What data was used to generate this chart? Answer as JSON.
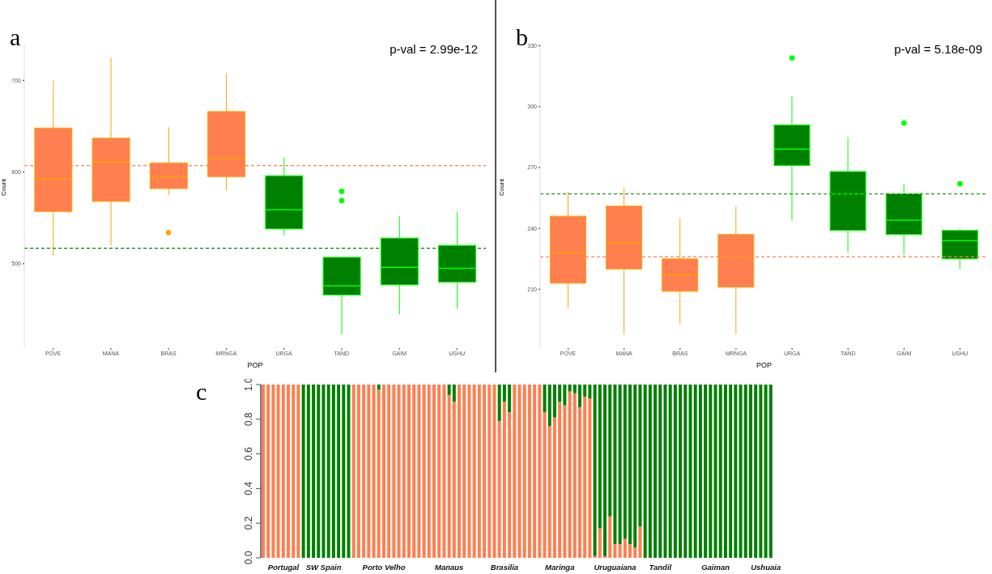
{
  "chart_data": [
    {
      "type": "box",
      "title": "a",
      "xlabel": "POP",
      "ylabel": "Count",
      "annotations": [
        "p-val = 2.99e-12"
      ],
      "categories": [
        "POVE",
        "MANA",
        "BRAS",
        "MRNGA",
        "URGA",
        "TAND",
        "GAIM",
        "USHU"
      ],
      "colors": [
        "#ff7f50",
        "#ff7f50",
        "#ff7f50",
        "#ff7f50",
        "#008000",
        "#008000",
        "#008000",
        "#008000"
      ],
      "boxes": [
        {
          "low": 509,
          "q1": 557,
          "median": 592,
          "q3": 648,
          "high": 700
        },
        {
          "low": 520,
          "q1": 568,
          "median": 611,
          "q3": 637,
          "high": 725
        },
        {
          "low": 575,
          "q1": 582,
          "median": 594,
          "q3": 610,
          "high": 649,
          "outliers": [
            534
          ]
        },
        {
          "low": 580,
          "q1": 595,
          "median": 615,
          "q3": 666,
          "high": 708
        },
        {
          "low": 531,
          "q1": 538,
          "median": 559,
          "q3": 596,
          "high": 616
        },
        {
          "low": 423,
          "q1": 466,
          "median": 476,
          "q3": 507,
          "high": 507,
          "outliers": [
            579,
            569
          ]
        },
        {
          "low": 445,
          "q1": 477,
          "median": 496,
          "q3": 528,
          "high": 552
        },
        {
          "low": 451,
          "q1": 480,
          "median": 495,
          "q3": 520,
          "high": 556
        }
      ],
      "ylim": [
        408,
        740
      ],
      "yticks": [
        500,
        600,
        700
      ],
      "grid": false,
      "legend": false,
      "ref_lines": [
        {
          "axis": "y",
          "value": 607,
          "color": "#ff7f50",
          "line_style": "dashed"
        },
        {
          "axis": "y",
          "value": 517,
          "color": "#008000",
          "line_style": "dashed"
        }
      ]
    },
    {
      "type": "box",
      "title": "b",
      "xlabel": "POP",
      "ylabel": "Count",
      "annotations": [
        "p-val = 5.18e-09"
      ],
      "categories": [
        "POVE",
        "MANA",
        "BRAS",
        "MRNGA",
        "URGA",
        "TAND",
        "GAIM",
        "USHU"
      ],
      "colors": [
        "#ff7f50",
        "#ff7f50",
        "#ff7f50",
        "#ff7f50",
        "#008000",
        "#008000",
        "#008000",
        "#008000"
      ],
      "boxes": [
        {
          "low": 201,
          "q1": 213,
          "median": 228,
          "q3": 246,
          "high": 258
        },
        {
          "low": 188,
          "q1": 220,
          "median": 233,
          "q3": 251,
          "high": 260
        },
        {
          "low": 193,
          "q1": 209,
          "median": 217,
          "q3": 225,
          "high": 245
        },
        {
          "low": 188,
          "q1": 211,
          "median": 226,
          "q3": 237,
          "high": 251
        },
        {
          "low": 244,
          "q1": 271,
          "median": 279,
          "q3": 291,
          "high": 305,
          "outliers": [
            324
          ]
        },
        {
          "low": 228,
          "q1": 239,
          "median": 257,
          "q3": 268,
          "high": 285
        },
        {
          "low": 227,
          "q1": 237,
          "median": 244,
          "q3": 257,
          "high": 262,
          "outliers": [
            292
          ]
        },
        {
          "low": 220,
          "q1": 225,
          "median": 234,
          "q3": 239,
          "high": 240,
          "outliers": [
            262
          ]
        }
      ],
      "ylim": [
        181,
        331
      ],
      "yticks": [
        210,
        240,
        270,
        300,
        330
      ],
      "grid": false,
      "legend": false,
      "ref_lines": [
        {
          "axis": "y",
          "value": 257,
          "color": "#008000",
          "line_style": "dashed"
        },
        {
          "axis": "y",
          "value": 226,
          "color": "#ff7f50",
          "line_style": "dashed"
        }
      ]
    },
    {
      "type": "bar",
      "title": "c",
      "stacked": true,
      "grid": false,
      "legend": false,
      "categories": [
        null,
        null,
        null,
        null,
        "Portugal",
        null,
        null,
        null,
        null,
        null,
        null,
        null,
        "SW Spain",
        null,
        null,
        null,
        null,
        null,
        null,
        null,
        null,
        null,
        null,
        null,
        "Porto Velho",
        null,
        null,
        null,
        null,
        null,
        null,
        null,
        null,
        null,
        null,
        null,
        null,
        "Manaus",
        null,
        null,
        null,
        null,
        null,
        null,
        null,
        null,
        null,
        null,
        "Brasilia",
        null,
        null,
        null,
        null,
        null,
        null,
        null,
        null,
        null,
        null,
        "Maringa",
        null,
        null,
        null,
        null,
        null,
        null,
        null,
        null,
        null,
        null,
        "Uruguaiana",
        null,
        null,
        null,
        null,
        null,
        null,
        null,
        null,
        "Tandil",
        null,
        null,
        null,
        null,
        null,
        null,
        null,
        null,
        null,
        null,
        "Gaiman",
        null,
        null,
        null,
        null,
        null,
        null,
        null,
        null,
        null,
        "Ushuaia",
        null
      ],
      "series": [
        {
          "color": "#ff7f50",
          "values": [
            1,
            1,
            1,
            1,
            1,
            1,
            1,
            1,
            0,
            0,
            0,
            0,
            0,
            0,
            0,
            0,
            0,
            0,
            1,
            1,
            1,
            1,
            1,
            0.97,
            1,
            1,
            1,
            1,
            1,
            1,
            1,
            1,
            1,
            1,
            1,
            1,
            1,
            0.94,
            0.9,
            1,
            1,
            1,
            1,
            1,
            1,
            1,
            1,
            0.79,
            0.9,
            0.84,
            1,
            1,
            1,
            1,
            1,
            1,
            0.84,
            0.76,
            0.81,
            0.9,
            0.88,
            0.96,
            0.95,
            0.87,
            0.93,
            0.92,
            0.01,
            0.17,
            0.01,
            0.24,
            0.08,
            0.08,
            0.11,
            0.08,
            0.06,
            0.18,
            0,
            0,
            0,
            0,
            0,
            0,
            0,
            0,
            0,
            0,
            0,
            0,
            0,
            0,
            0,
            0,
            0,
            0,
            0,
            0,
            0,
            0,
            0,
            0,
            0,
            0
          ]
        },
        {
          "color": "#008000",
          "values": [
            0,
            0,
            0,
            0,
            0,
            0,
            0,
            0,
            1,
            1,
            1,
            1,
            1,
            1,
            1,
            1,
            1,
            1,
            0,
            0,
            0,
            0,
            0,
            0.03,
            0,
            0,
            0,
            0,
            0,
            0,
            0,
            0,
            0,
            0,
            0,
            0,
            0,
            0.06,
            0.1,
            0,
            0,
            0,
            0,
            0,
            0,
            0,
            0,
            0.21,
            0.1,
            0.16,
            0,
            0,
            0,
            0,
            0,
            0,
            0.16,
            0.24,
            0.19,
            0.1,
            0.12,
            0.04,
            0.05,
            0.13,
            0.07,
            0.08,
            0.99,
            0.83,
            0.99,
            0.76,
            0.92,
            0.92,
            0.89,
            0.92,
            0.94,
            0.82,
            1,
            1,
            1,
            1,
            1,
            1,
            1,
            1,
            1,
            1,
            1,
            1,
            1,
            1,
            1,
            1,
            1,
            1,
            1,
            1,
            1,
            1,
            1,
            1,
            1,
            1
          ]
        }
      ],
      "ylim": [
        0,
        1
      ],
      "yticks": [
        {
          "value": 0,
          "label": "0.0"
        },
        {
          "value": 0.2,
          "label": "0.2"
        },
        {
          "value": 0.4,
          "label": "0.4"
        },
        {
          "value": 0.6,
          "label": "0.6"
        },
        {
          "value": 0.8,
          "label": "0.8"
        },
        {
          "value": 1,
          "label": "1.0"
        }
      ]
    }
  ]
}
